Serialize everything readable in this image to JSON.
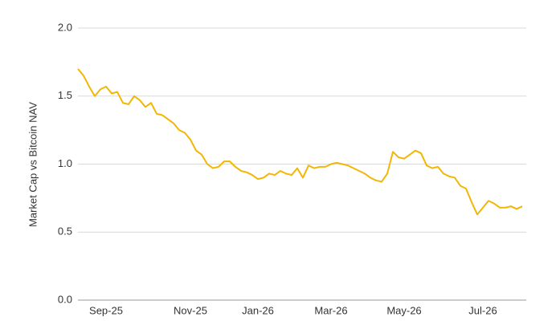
{
  "chart_data": {
    "type": "line",
    "y_label": "Market Cap vs Bitcoin NAV",
    "categories": [
      null,
      null,
      null,
      null,
      null,
      "Sep-25",
      null,
      null,
      null,
      null,
      null,
      null,
      null,
      null,
      null,
      null,
      null,
      null,
      null,
      null,
      "Nov-25",
      null,
      null,
      null,
      null,
      null,
      null,
      null,
      null,
      null,
      null,
      null,
      "Jan-26",
      null,
      null,
      null,
      null,
      null,
      null,
      null,
      null,
      null,
      null,
      null,
      null,
      "Mar-26",
      null,
      null,
      null,
      null,
      null,
      null,
      null,
      null,
      null,
      null,
      null,
      null,
      "May-26",
      null,
      null,
      null,
      null,
      null,
      null,
      null,
      null,
      null,
      null,
      null,
      null,
      null,
      "Jul-26",
      null,
      null,
      null,
      null,
      null,
      null,
      null
    ],
    "values": [
      1.7,
      1.65,
      1.57,
      1.5,
      1.55,
      1.57,
      1.52,
      1.53,
      1.45,
      1.44,
      1.5,
      1.47,
      1.42,
      1.45,
      1.37,
      1.36,
      1.33,
      1.3,
      1.25,
      1.23,
      1.18,
      1.1,
      1.07,
      1.0,
      0.97,
      0.98,
      1.02,
      1.02,
      0.98,
      0.95,
      0.94,
      0.92,
      0.89,
      0.9,
      0.93,
      0.92,
      0.95,
      0.93,
      0.92,
      0.97,
      0.9,
      0.99,
      0.97,
      0.98,
      0.98,
      1.0,
      1.01,
      1.0,
      0.99,
      0.97,
      0.95,
      0.93,
      0.9,
      0.88,
      0.87,
      0.93,
      1.09,
      1.05,
      1.04,
      1.07,
      1.1,
      1.08,
      0.99,
      0.97,
      0.98,
      0.93,
      0.91,
      0.9,
      0.84,
      0.82,
      0.72,
      0.63,
      0.68,
      0.73,
      0.71,
      0.68,
      0.68,
      0.69,
      0.67,
      0.69
    ],
    "color": "#f2b705",
    "ylim": [
      0,
      2
    ],
    "yticks": [
      {
        "value": 0,
        "label": "0.0"
      },
      0.5,
      {
        "value": 1,
        "label": "1.0"
      },
      1.5,
      {
        "value": 2,
        "label": "2.0"
      }
    ],
    "grid": true
  }
}
